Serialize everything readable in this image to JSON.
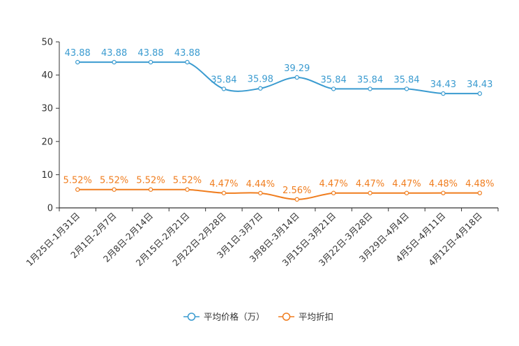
{
  "chart_data": {
    "type": "line",
    "title": "",
    "xlabel": "",
    "ylabel": "",
    "ylim": [
      0,
      50
    ],
    "yticks": [
      "0",
      "10",
      "20",
      "30",
      "40",
      "50"
    ],
    "categories": [
      "1月25日-1月31日",
      "2月1日-2月7日",
      "2月8日-2月14日",
      "2月15日-2月21日",
      "2月22日-2月28日",
      "3月1日-3月7日",
      "3月8日-3月14日",
      "3月15日-3月21日",
      "3月22日-3月28日",
      "3月29日-4月4日",
      "4月5日-4月11日",
      "4月12日-4月18日"
    ],
    "series": [
      {
        "name": "平均价格（万）",
        "color": "#3a9bd0",
        "values": [
          43.88,
          43.88,
          43.88,
          43.88,
          35.84,
          35.98,
          39.29,
          35.84,
          35.84,
          35.84,
          34.43,
          34.43
        ],
        "labels": [
          "43.88",
          "43.88",
          "43.88",
          "43.88",
          "35.84",
          "35.98",
          "39.29",
          "35.84",
          "35.84",
          "35.84",
          "34.43",
          "34.43"
        ]
      },
      {
        "name": "平均折扣",
        "color": "#f07d1e",
        "values": [
          5.52,
          5.52,
          5.52,
          5.52,
          4.47,
          4.44,
          2.56,
          4.47,
          4.47,
          4.47,
          4.48,
          4.48
        ],
        "labels": [
          "5.52%",
          "5.52%",
          "5.52%",
          "5.52%",
          "4.47%",
          "4.44%",
          "2.56%",
          "4.47%",
          "4.47%",
          "4.47%",
          "4.48%",
          "4.48%"
        ]
      }
    ],
    "legend_position": "bottom-center"
  }
}
